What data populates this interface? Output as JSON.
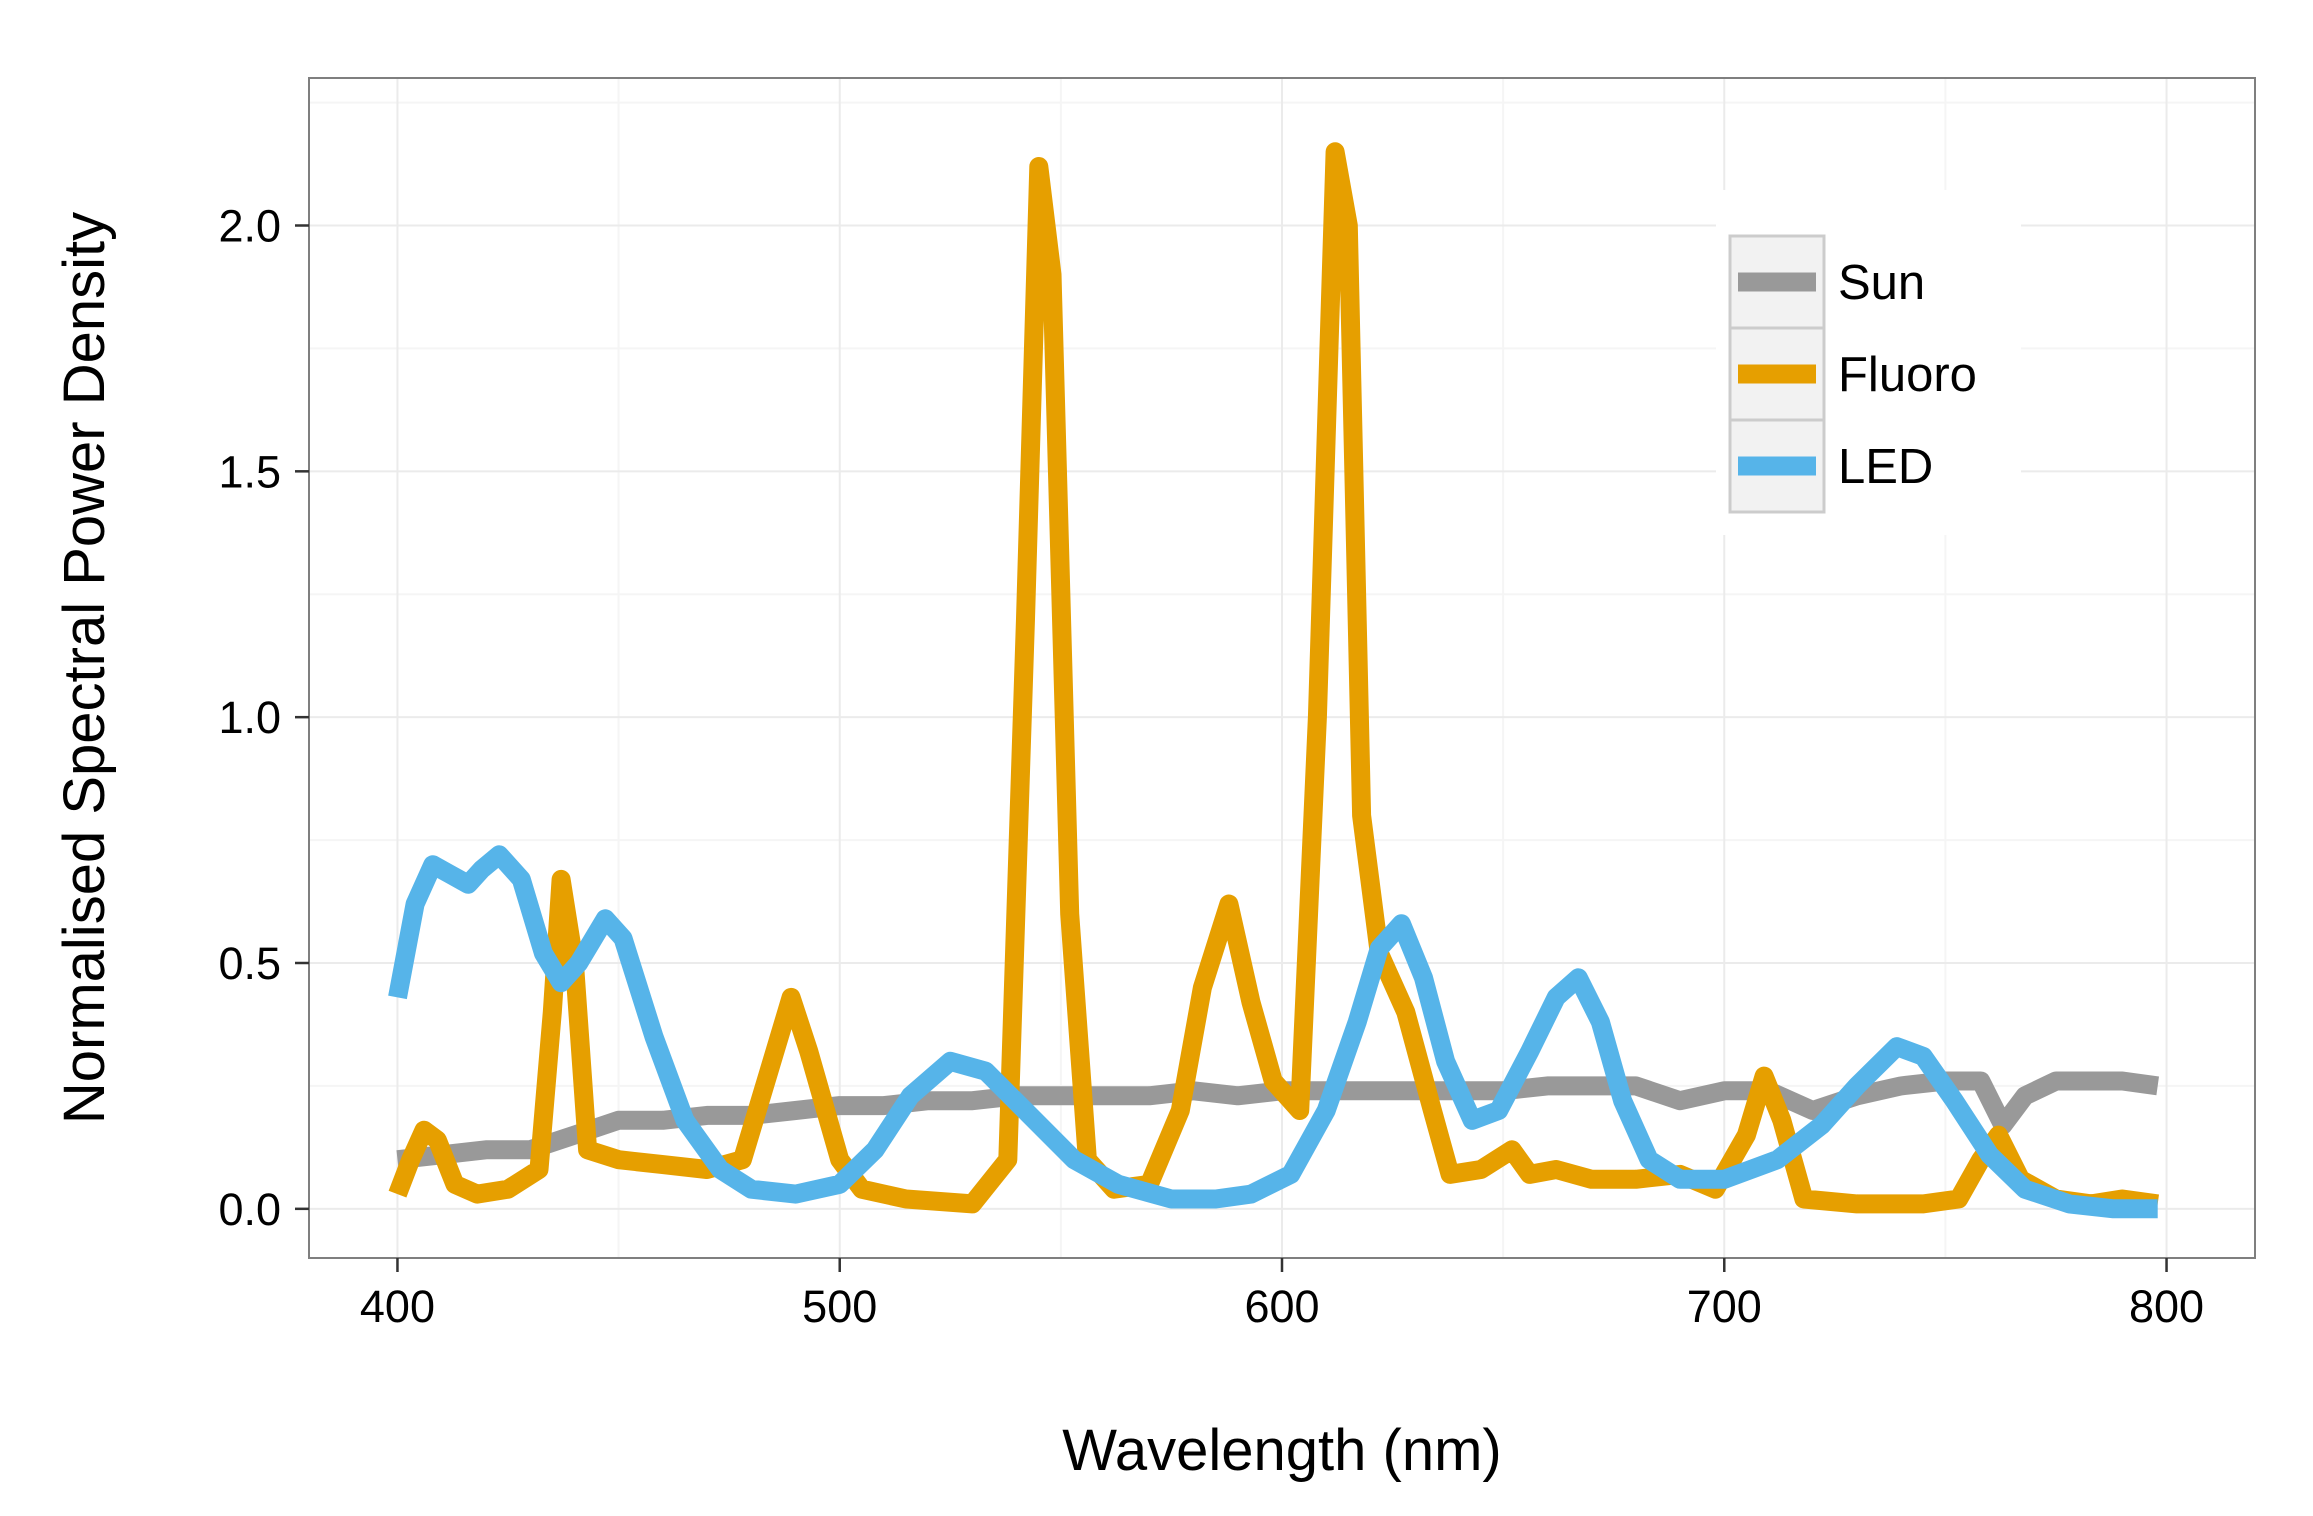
{
  "chart_data": {
    "type": "line",
    "title": "",
    "xlabel": "Wavelength (nm)",
    "ylabel": "Normalised Spectral Power Density",
    "xlim": [
      380,
      820
    ],
    "ylim": [
      -0.1,
      2.3
    ],
    "x_ticks": [
      400,
      500,
      600,
      700,
      800
    ],
    "x_tick_labels": [
      "400",
      "500",
      "600",
      "700",
      "800"
    ],
    "y_ticks": [
      0,
      0.5,
      1,
      1.5,
      2
    ],
    "y_tick_labels": [
      "0.0",
      "0.5",
      "1.0",
      "1.5",
      "2.0"
    ],
    "grid": true,
    "legend_position": "top-right",
    "series": [
      {
        "name": "Sun",
        "color": "#999999",
        "points": [
          [
            400,
            0.1
          ],
          [
            410,
            0.11
          ],
          [
            420,
            0.12
          ],
          [
            430,
            0.12
          ],
          [
            440,
            0.15
          ],
          [
            450,
            0.18
          ],
          [
            460,
            0.18
          ],
          [
            470,
            0.19
          ],
          [
            480,
            0.19
          ],
          [
            490,
            0.2
          ],
          [
            500,
            0.21
          ],
          [
            510,
            0.21
          ],
          [
            520,
            0.22
          ],
          [
            530,
            0.22
          ],
          [
            540,
            0.23
          ],
          [
            550,
            0.23
          ],
          [
            560,
            0.23
          ],
          [
            570,
            0.23
          ],
          [
            580,
            0.24
          ],
          [
            590,
            0.23
          ],
          [
            600,
            0.24
          ],
          [
            610,
            0.24
          ],
          [
            620,
            0.24
          ],
          [
            630,
            0.24
          ],
          [
            640,
            0.24
          ],
          [
            650,
            0.24
          ],
          [
            660,
            0.25
          ],
          [
            670,
            0.25
          ],
          [
            680,
            0.25
          ],
          [
            690,
            0.22
          ],
          [
            700,
            0.24
          ],
          [
            710,
            0.24
          ],
          [
            720,
            0.2
          ],
          [
            730,
            0.23
          ],
          [
            740,
            0.25
          ],
          [
            750,
            0.26
          ],
          [
            758,
            0.26
          ],
          [
            763,
            0.17
          ],
          [
            768,
            0.23
          ],
          [
            775,
            0.26
          ],
          [
            790,
            0.26
          ],
          [
            798,
            0.25
          ]
        ]
      },
      {
        "name": "Fluoro",
        "color": "#E69F00",
        "points": [
          [
            400,
            0.03
          ],
          [
            403,
            0.1
          ],
          [
            406,
            0.16
          ],
          [
            409,
            0.14
          ],
          [
            413,
            0.05
          ],
          [
            418,
            0.03
          ],
          [
            425,
            0.04
          ],
          [
            432,
            0.08
          ],
          [
            435,
            0.4
          ],
          [
            437,
            0.67
          ],
          [
            440,
            0.5
          ],
          [
            443,
            0.12
          ],
          [
            450,
            0.1
          ],
          [
            460,
            0.09
          ],
          [
            470,
            0.08
          ],
          [
            478,
            0.1
          ],
          [
            484,
            0.28
          ],
          [
            489,
            0.43
          ],
          [
            493,
            0.32
          ],
          [
            500,
            0.1
          ],
          [
            505,
            0.04
          ],
          [
            515,
            0.02
          ],
          [
            530,
            0.01
          ],
          [
            538,
            0.1
          ],
          [
            542,
            1.2
          ],
          [
            545,
            2.12
          ],
          [
            548,
            1.9
          ],
          [
            552,
            0.6
          ],
          [
            556,
            0.1
          ],
          [
            562,
            0.04
          ],
          [
            570,
            0.05
          ],
          [
            577,
            0.2
          ],
          [
            582,
            0.45
          ],
          [
            588,
            0.62
          ],
          [
            593,
            0.42
          ],
          [
            598,
            0.26
          ],
          [
            604,
            0.2
          ],
          [
            608,
            1.0
          ],
          [
            612,
            2.15
          ],
          [
            615,
            2.0
          ],
          [
            618,
            0.8
          ],
          [
            622,
            0.52
          ],
          [
            628,
            0.4
          ],
          [
            634,
            0.2
          ],
          [
            638,
            0.07
          ],
          [
            645,
            0.08
          ],
          [
            652,
            0.12
          ],
          [
            656,
            0.07
          ],
          [
            662,
            0.08
          ],
          [
            670,
            0.06
          ],
          [
            680,
            0.06
          ],
          [
            690,
            0.07
          ],
          [
            698,
            0.04
          ],
          [
            705,
            0.15
          ],
          [
            709,
            0.27
          ],
          [
            713,
            0.18
          ],
          [
            718,
            0.02
          ],
          [
            730,
            0.01
          ],
          [
            745,
            0.01
          ],
          [
            753,
            0.02
          ],
          [
            758,
            0.1
          ],
          [
            762,
            0.15
          ],
          [
            767,
            0.06
          ],
          [
            775,
            0.02
          ],
          [
            783,
            0.01
          ],
          [
            790,
            0.02
          ],
          [
            798,
            0.01
          ]
        ]
      },
      {
        "name": "LED",
        "color": "#56B4E9",
        "points": [
          [
            400,
            0.43
          ],
          [
            404,
            0.62
          ],
          [
            408,
            0.7
          ],
          [
            412,
            0.68
          ],
          [
            416,
            0.66
          ],
          [
            419,
            0.69
          ],
          [
            423,
            0.72
          ],
          [
            428,
            0.67
          ],
          [
            433,
            0.52
          ],
          [
            437,
            0.46
          ],
          [
            441,
            0.5
          ],
          [
            447,
            0.59
          ],
          [
            451,
            0.55
          ],
          [
            458,
            0.35
          ],
          [
            465,
            0.18
          ],
          [
            473,
            0.08
          ],
          [
            480,
            0.04
          ],
          [
            490,
            0.03
          ],
          [
            500,
            0.05
          ],
          [
            508,
            0.12
          ],
          [
            516,
            0.23
          ],
          [
            525,
            0.3
          ],
          [
            533,
            0.28
          ],
          [
            543,
            0.19
          ],
          [
            553,
            0.1
          ],
          [
            563,
            0.05
          ],
          [
            575,
            0.02
          ],
          [
            585,
            0.02
          ],
          [
            593,
            0.03
          ],
          [
            602,
            0.07
          ],
          [
            610,
            0.2
          ],
          [
            617,
            0.38
          ],
          [
            622,
            0.53
          ],
          [
            627,
            0.58
          ],
          [
            632,
            0.47
          ],
          [
            637,
            0.3
          ],
          [
            643,
            0.18
          ],
          [
            649,
            0.2
          ],
          [
            656,
            0.32
          ],
          [
            662,
            0.43
          ],
          [
            667,
            0.47
          ],
          [
            672,
            0.38
          ],
          [
            677,
            0.22
          ],
          [
            683,
            0.1
          ],
          [
            690,
            0.06
          ],
          [
            700,
            0.06
          ],
          [
            712,
            0.1
          ],
          [
            722,
            0.17
          ],
          [
            730,
            0.25
          ],
          [
            739,
            0.33
          ],
          [
            745,
            0.31
          ],
          [
            752,
            0.22
          ],
          [
            760,
            0.11
          ],
          [
            768,
            0.04
          ],
          [
            778,
            0.01
          ],
          [
            788,
            0.0
          ],
          [
            798,
            0.0
          ]
        ]
      }
    ]
  }
}
